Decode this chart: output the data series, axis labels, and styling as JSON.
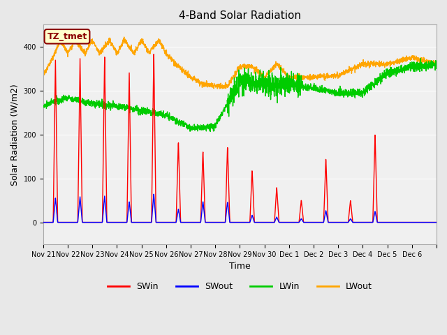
{
  "title": "4-Band Solar Radiation",
  "xlabel": "Time",
  "ylabel": "Solar Radiation (W/m2)",
  "ylim": [
    -50,
    450
  ],
  "annotation_text": "TZ_tmet",
  "annotation_bg": "#ffffcc",
  "annotation_border": "#8B0000",
  "annotation_text_color": "#8B0000",
  "colors": {
    "SWin": "#ff0000",
    "SWout": "#0000ff",
    "LWin": "#00cc00",
    "LWout": "#ffa500"
  },
  "legend_labels": [
    "SWin",
    "SWout",
    "LWin",
    "LWout"
  ],
  "bg_color": "#e8e8e8",
  "plot_bg_color": "#f0f0f0",
  "tick_positions": [
    0,
    1,
    2,
    3,
    4,
    5,
    6,
    7,
    8,
    9,
    10,
    11,
    12,
    13,
    14,
    15,
    16
  ],
  "tick_labels": [
    "Nov 21",
    "Nov 22",
    "Nov 23",
    "Nov 24",
    "Nov 25",
    "Nov 26",
    "Nov 27",
    "Nov 28",
    "Nov 29",
    "Nov 30",
    "Dec 1",
    "Dec 2",
    "Dec 3",
    "Dec 4",
    "Dec 5",
    "Dec 6",
    ""
  ]
}
